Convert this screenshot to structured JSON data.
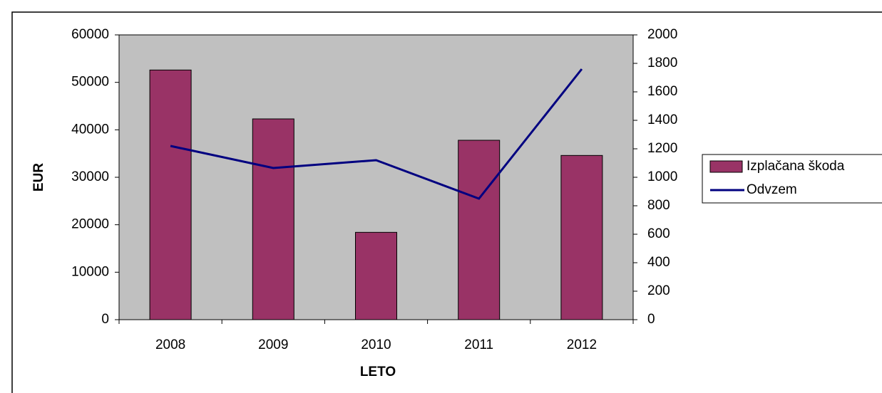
{
  "chart_data": {
    "type": "bar",
    "categories": [
      "2008",
      "2009",
      "2010",
      "2011",
      "2012"
    ],
    "series": [
      {
        "name": "Izplačana škoda",
        "type": "bar",
        "color": "#993366",
        "values": [
          52600,
          42300,
          18400,
          37800,
          34600
        ]
      },
      {
        "name": "Odvzem",
        "type": "line",
        "color": "#000080",
        "axis": "y2",
        "values": [
          1220,
          1065,
          1120,
          850,
          1760
        ]
      }
    ],
    "ylabel": "EUR",
    "xlabel": "LETO",
    "ylim": [
      0,
      60000
    ],
    "yticks": [
      0,
      10000,
      20000,
      30000,
      40000,
      50000,
      60000
    ],
    "y2lim": [
      0,
      2000
    ],
    "y2ticks": [
      0,
      200,
      400,
      600,
      800,
      1000,
      1200,
      1400,
      1600,
      1800,
      2000
    ],
    "legend": "right",
    "plot_background": "#c0c0c0"
  }
}
